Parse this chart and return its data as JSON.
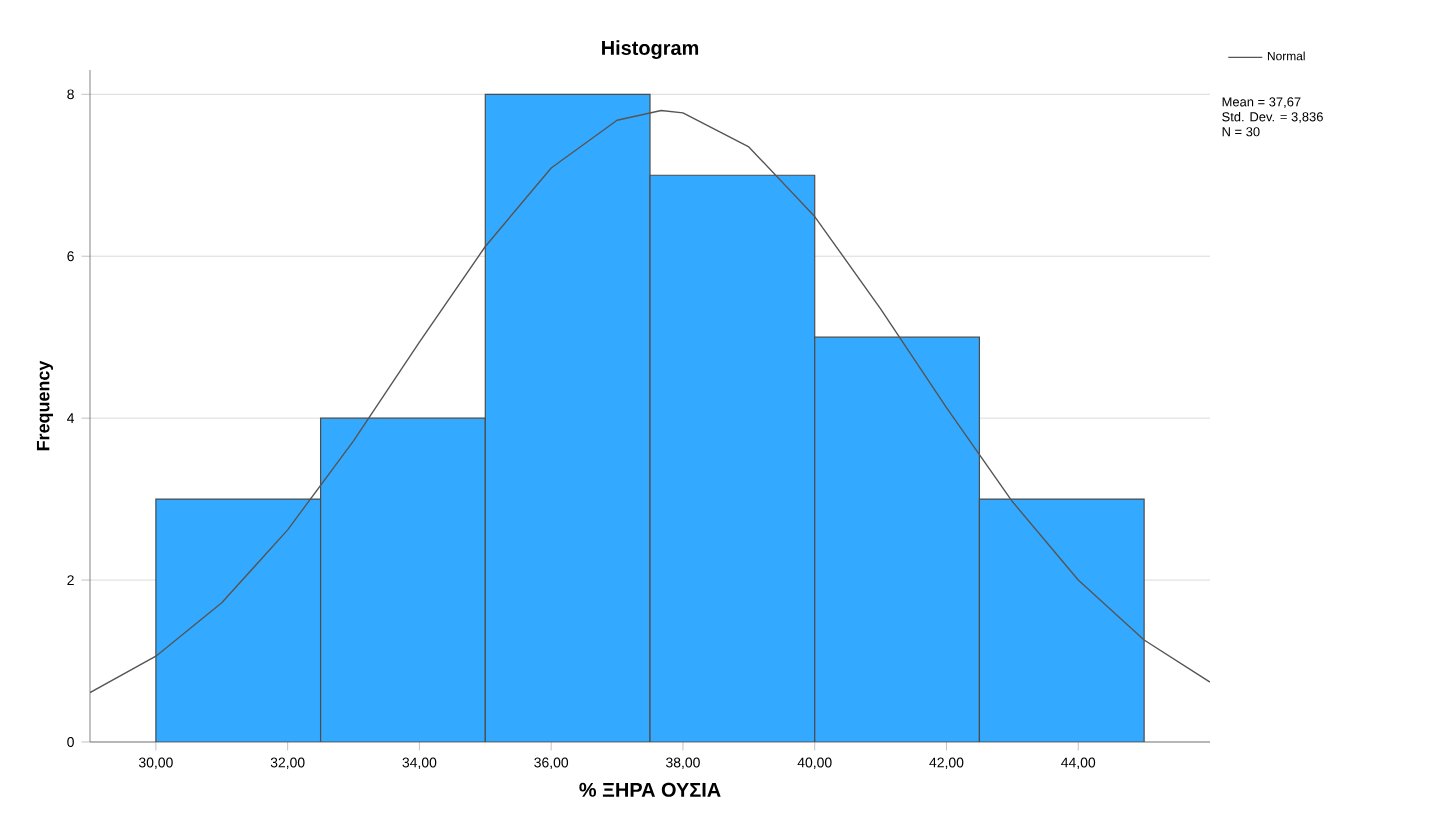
{
  "chart_data": {
    "type": "histogram",
    "title": "Histogram",
    "xlabel": "% ΞΗΡΑ ΟΥΣΙΑ",
    "ylabel": "Frequency",
    "bins": [
      30,
      32.5,
      35,
      37.5,
      40,
      42.5,
      45
    ],
    "values": [
      3,
      4,
      8,
      7,
      5,
      3
    ],
    "color": "#33aaff",
    "series": [
      {
        "name": "Normal",
        "type": "line",
        "color": "#555555",
        "x": [
          29,
          30,
          31,
          32,
          33,
          34,
          35,
          36,
          37,
          37.67,
          38,
          39,
          40,
          41,
          42,
          43,
          44,
          45,
          46
        ],
        "values": [
          0.61,
          1.06,
          1.72,
          2.62,
          3.72,
          4.94,
          6.12,
          7.09,
          7.68,
          7.8,
          7.77,
          7.35,
          6.49,
          5.35,
          4.13,
          2.97,
          2.0,
          1.26,
          0.74
        ]
      }
    ],
    "xlim": [
      29,
      46
    ],
    "ylim": [
      0,
      8.3
    ],
    "xticks": [
      {
        "value": 30,
        "label": "30,00"
      },
      {
        "value": 32,
        "label": "32,00"
      },
      {
        "value": 34,
        "label": "34,00"
      },
      {
        "value": 36,
        "label": "36,00"
      },
      {
        "value": 38,
        "label": "38,00"
      },
      {
        "value": 40,
        "label": "40,00"
      },
      {
        "value": 42,
        "label": "42,00"
      },
      {
        "value": 44,
        "label": "44,00"
      }
    ],
    "yticks": [
      0,
      2,
      4,
      6,
      8
    ],
    "grid": "y",
    "legend": "top right",
    "annotations": [
      "Mean = 37,67",
      "Std. Dev. = 3,836",
      "N = 30"
    ]
  }
}
